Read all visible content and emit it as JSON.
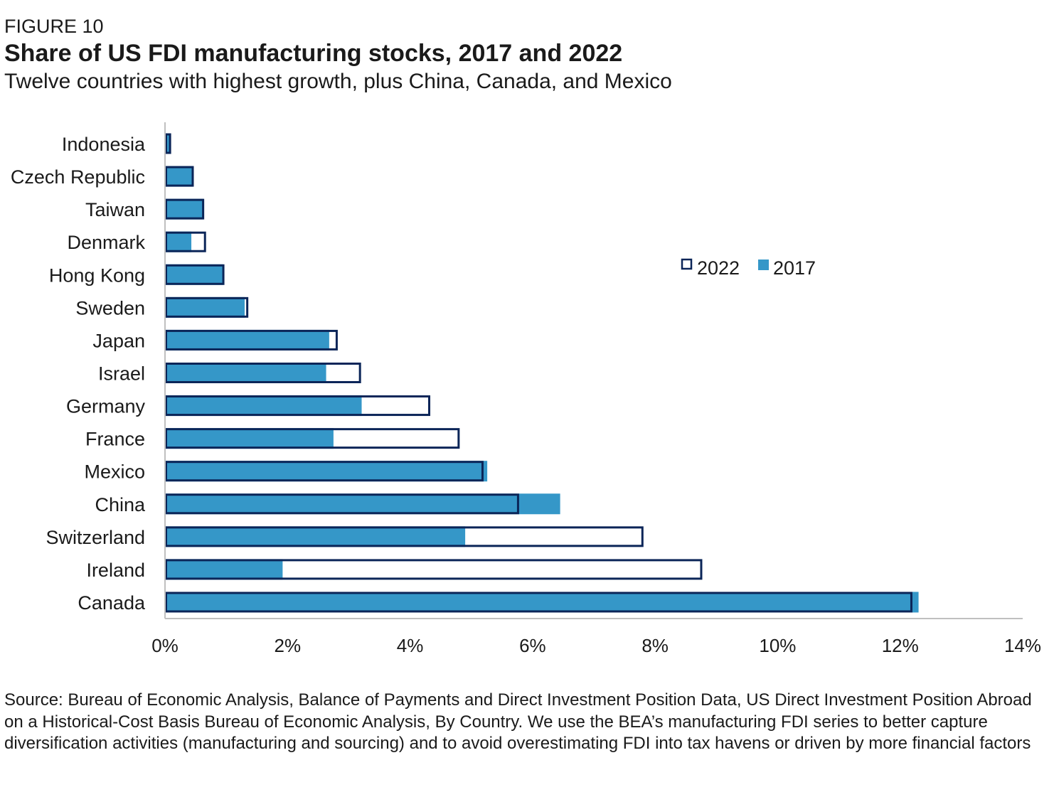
{
  "figure_label": "FIGURE 10",
  "title": "Share of US FDI manufacturing stocks, 2017 and 2022",
  "subtitle": "Twelve countries with highest growth, plus China, Canada, and Mexico",
  "source": "Source: Bureau of Economic Analysis, Balance of Payments and Direct Investment Position Data, US Direct Investment Position Abroad on a Historical-Cost Basis Bureau of Economic Analysis, By Country. We use the BEA’s manufacturing FDI series to better capture diversification activities (manufacturing and sourcing) and to avoid overestimating FDI into tax havens or driven by more financial factors",
  "colors": {
    "series_2017": "#3597C8",
    "series_2022_outline": "#0B2558",
    "axis": "#BFBFBF",
    "text": "#1a1a1a"
  },
  "chart_data": {
    "type": "bar",
    "orientation": "horizontal",
    "categories": [
      "Indonesia",
      "Czech Republic",
      "Taiwan",
      "Denmark",
      "Hong Kong",
      "Sweden",
      "Japan",
      "Israel",
      "Germany",
      "France",
      "Mexico",
      "China",
      "Switzerland",
      "Ireland",
      "Canada"
    ],
    "series": [
      {
        "name": "2022",
        "style": "outline",
        "values": [
          0.1,
          0.47,
          0.64,
          0.67,
          0.97,
          1.36,
          2.82,
          3.2,
          4.33,
          4.81,
          5.2,
          5.78,
          7.81,
          8.77,
          12.2
        ]
      },
      {
        "name": "2017",
        "style": "filled",
        "values": [
          0.08,
          0.45,
          0.62,
          0.43,
          0.95,
          1.3,
          2.68,
          2.63,
          3.21,
          2.75,
          5.26,
          6.45,
          4.9,
          1.92,
          12.3
        ]
      }
    ],
    "x_ticks": [
      "0%",
      "2%",
      "4%",
      "6%",
      "8%",
      "10%",
      "12%",
      "14%"
    ],
    "xlim": [
      0,
      14
    ],
    "legend": [
      "2022",
      "2017"
    ],
    "legend_position": "right",
    "grid": false
  }
}
